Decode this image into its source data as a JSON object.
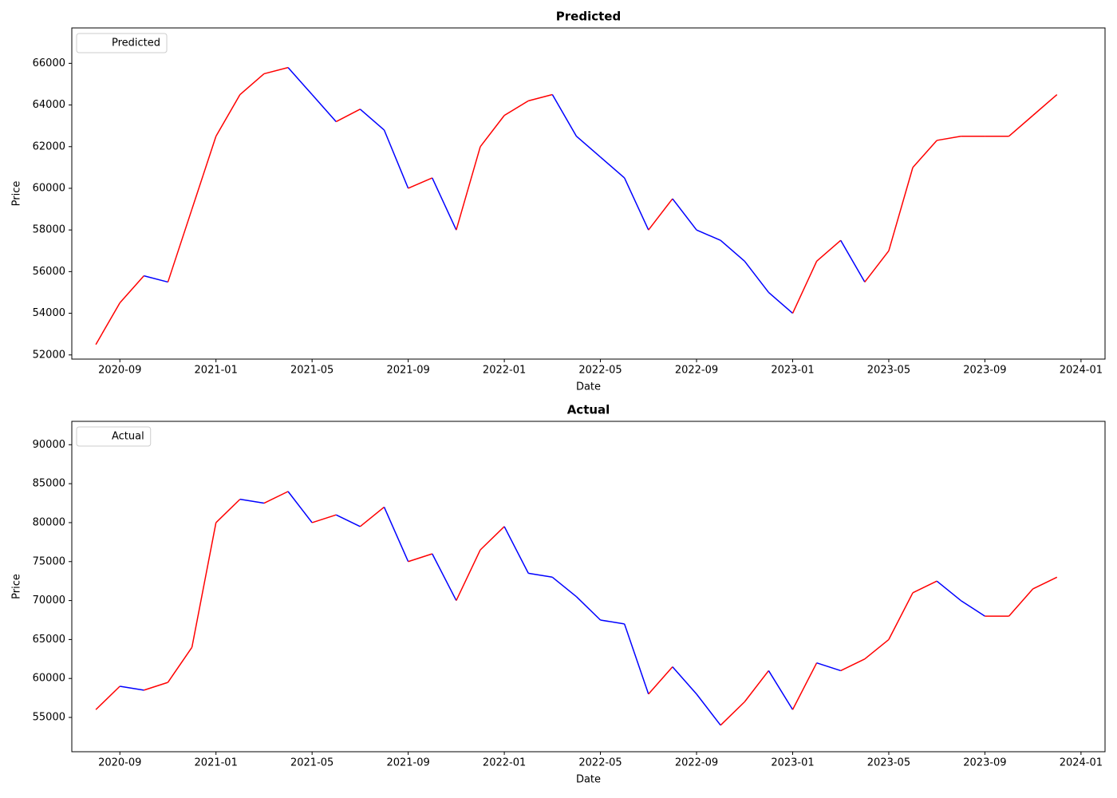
{
  "chart_data": [
    {
      "type": "line",
      "title": "Predicted",
      "x_label": "Date",
      "y_label": "Price",
      "x": [
        "2020-08",
        "2020-09",
        "2020-10",
        "2020-11",
        "2020-12",
        "2021-01",
        "2021-02",
        "2021-03",
        "2021-04",
        "2021-05",
        "2021-06",
        "2021-07",
        "2021-08",
        "2021-09",
        "2021-10",
        "2021-11",
        "2021-12",
        "2022-01",
        "2022-02",
        "2022-03",
        "2022-04",
        "2022-05",
        "2022-06",
        "2022-07",
        "2022-08",
        "2022-09",
        "2022-10",
        "2022-11",
        "2022-12",
        "2023-01",
        "2023-02",
        "2023-03",
        "2023-04",
        "2023-05",
        "2023-06",
        "2023-07",
        "2023-08",
        "2023-09",
        "2023-10",
        "2023-11",
        "2023-12"
      ],
      "series": [
        {
          "name": "Predicted",
          "color": "white",
          "values": [
            52500,
            54500,
            55800,
            55500,
            59000,
            62500,
            64500,
            65500,
            65800,
            64500,
            63200,
            63800,
            62800,
            60000,
            60500,
            58000,
            62000,
            63500,
            64200,
            64500,
            62500,
            61500,
            60500,
            58000,
            59500,
            58000,
            57500,
            56500,
            55000,
            54000,
            56500,
            57500,
            55500,
            57000,
            61000,
            62300,
            62500,
            62500,
            62500,
            63500,
            64500
          ]
        }
      ],
      "up_color": "red",
      "down_color": "blue",
      "legend": "upper left",
      "xlim": [
        "2020-07",
        "2024-02"
      ],
      "xticks": [
        "2020-09",
        "2021-01",
        "2021-05",
        "2021-09",
        "2022-01",
        "2022-05",
        "2022-09",
        "2023-01",
        "2023-05",
        "2023-09",
        "2024-01"
      ],
      "ylim": [
        51800,
        67700
      ],
      "yticks": [
        52000,
        54000,
        56000,
        58000,
        60000,
        62000,
        64000,
        66000
      ]
    },
    {
      "type": "line",
      "title": "Actual",
      "x_label": "Date",
      "y_label": "Price",
      "x": [
        "2020-08",
        "2020-09",
        "2020-10",
        "2020-11",
        "2020-12",
        "2021-01",
        "2021-02",
        "2021-03",
        "2021-04",
        "2021-05",
        "2021-06",
        "2021-07",
        "2021-08",
        "2021-09",
        "2021-10",
        "2021-11",
        "2021-12",
        "2022-01",
        "2022-02",
        "2022-03",
        "2022-04",
        "2022-05",
        "2022-06",
        "2022-07",
        "2022-08",
        "2022-09",
        "2022-10",
        "2022-11",
        "2022-12",
        "2023-01",
        "2023-02",
        "2023-03",
        "2023-04",
        "2023-05",
        "2023-06",
        "2023-07",
        "2023-08",
        "2023-09",
        "2023-10",
        "2023-11",
        "2023-12"
      ],
      "series": [
        {
          "name": "Actual",
          "color": "white",
          "values": [
            56000,
            59000,
            58500,
            59500,
            64000,
            80000,
            83000,
            82500,
            84000,
            80000,
            81000,
            79500,
            82000,
            75000,
            76000,
            70000,
            76500,
            79500,
            73500,
            73000,
            70500,
            67500,
            67000,
            58000,
            61500,
            58000,
            54000,
            57000,
            61000,
            56000,
            62000,
            61000,
            62500,
            65000,
            71000,
            72500,
            70000,
            68000,
            68000,
            71500,
            73000
          ]
        }
      ],
      "up_color": "red",
      "down_color": "blue",
      "legend": "upper left",
      "xlim": [
        "2020-07",
        "2024-02"
      ],
      "xticks": [
        "2020-09",
        "2021-01",
        "2021-05",
        "2021-09",
        "2022-01",
        "2022-05",
        "2022-09",
        "2023-01",
        "2023-05",
        "2023-09",
        "2024-01"
      ],
      "ylim": [
        50600,
        93000
      ],
      "yticks": [
        55000,
        60000,
        65000,
        70000,
        75000,
        80000,
        85000,
        90000
      ]
    }
  ]
}
